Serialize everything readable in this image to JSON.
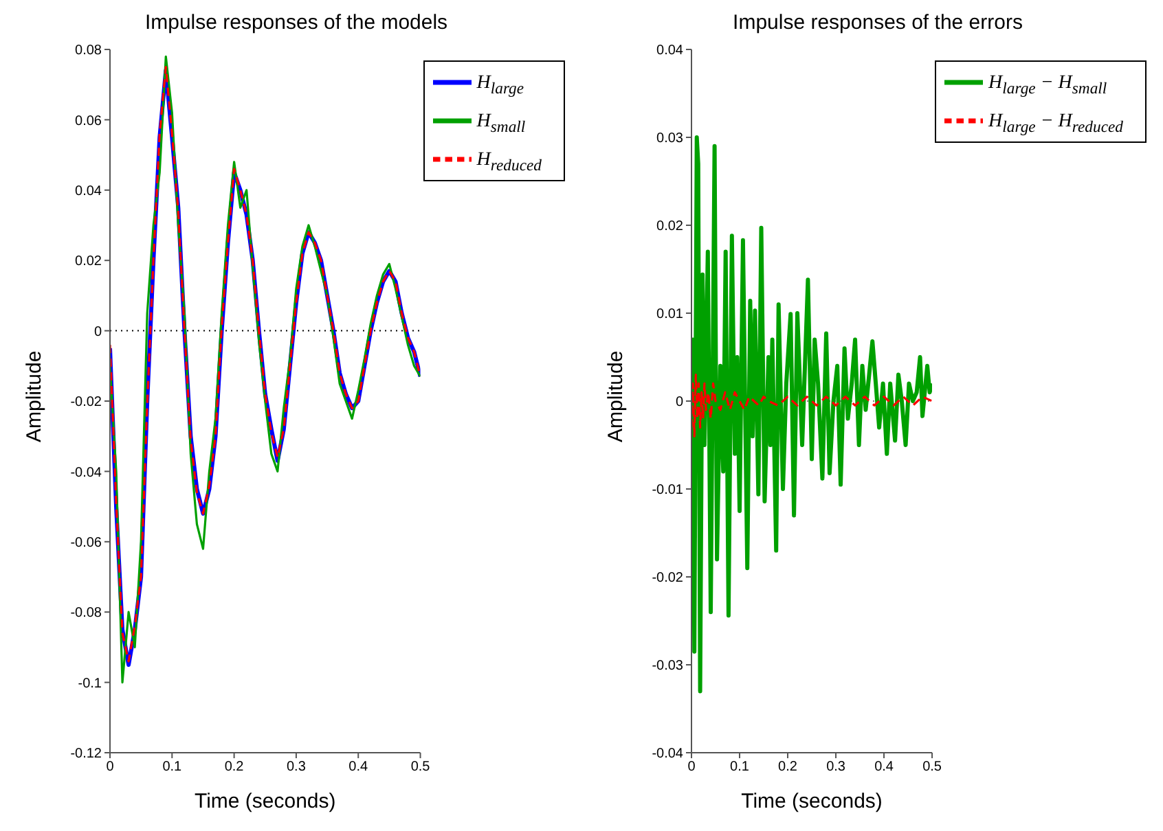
{
  "chart_data": [
    {
      "type": "line",
      "title": "Impulse responses of the models",
      "xlabel": "Time (seconds)",
      "ylabel": "Amplitude",
      "x": [
        0,
        0.01,
        0.02,
        0.03,
        0.04,
        0.05,
        0.06,
        0.07,
        0.08,
        0.09,
        0.1,
        0.11,
        0.12,
        0.13,
        0.14,
        0.15,
        0.16,
        0.17,
        0.18,
        0.19,
        0.2,
        0.21,
        0.22,
        0.23,
        0.24,
        0.25,
        0.26,
        0.27,
        0.28,
        0.29,
        0.3,
        0.31,
        0.32,
        0.33,
        0.34,
        0.35,
        0.36,
        0.37,
        0.38,
        0.39,
        0.4,
        0.41,
        0.42,
        0.43,
        0.44,
        0.45,
        0.46,
        0.47,
        0.48,
        0.49,
        0.5
      ],
      "series": [
        {
          "name": "H$_{large}$",
          "color": "#0000ff",
          "line_style": "solid",
          "values": [
            -0.005,
            -0.05,
            -0.085,
            -0.095,
            -0.085,
            -0.07,
            -0.02,
            0.02,
            0.055,
            0.074,
            0.055,
            0.035,
            0,
            -0.03,
            -0.045,
            -0.052,
            -0.045,
            -0.03,
            0,
            0.025,
            0.045,
            0.04,
            0.033,
            0.02,
            0,
            -0.018,
            -0.028,
            -0.037,
            -0.028,
            -0.01,
            0.008,
            0.022,
            0.028,
            0.025,
            0.02,
            0.01,
            0,
            -0.012,
            -0.018,
            -0.022,
            -0.02,
            -0.01,
            0,
            0.008,
            0.014,
            0.017,
            0.014,
            0.005,
            -0.002,
            -0.006,
            -0.013
          ]
        },
        {
          "name": "H$_{small}$",
          "color": "#00a000",
          "line_style": "solid",
          "values": [
            -0.01,
            -0.04,
            -0.1,
            -0.08,
            -0.09,
            -0.06,
            0.005,
            0.03,
            0.045,
            0.078,
            0.062,
            0.03,
            0.005,
            -0.035,
            -0.055,
            -0.062,
            -0.04,
            -0.025,
            0.005,
            0.03,
            0.048,
            0.035,
            0.04,
            0.018,
            -0.003,
            -0.02,
            -0.035,
            -0.04,
            -0.022,
            -0.008,
            0.012,
            0.024,
            0.03,
            0.024,
            0.017,
            0.01,
            -0.002,
            -0.015,
            -0.02,
            -0.025,
            -0.017,
            -0.008,
            0.002,
            0.01,
            0.016,
            0.019,
            0.012,
            0.004,
            -0.004,
            -0.01,
            -0.013
          ]
        },
        {
          "name": "H$_{reduced}$",
          "color": "#ff0000",
          "line_style": "dashed",
          "values": [
            -0.004,
            -0.049,
            -0.086,
            -0.094,
            -0.084,
            -0.07,
            -0.021,
            0.02,
            0.056,
            0.075,
            0.056,
            0.034,
            0,
            -0.031,
            -0.046,
            -0.052,
            -0.044,
            -0.03,
            0.001,
            0.025,
            0.046,
            0.04,
            0.033,
            0.02,
            0,
            -0.018,
            -0.029,
            -0.036,
            -0.028,
            -0.01,
            0.008,
            0.022,
            0.028,
            0.025,
            0.02,
            0.01,
            0,
            -0.012,
            -0.018,
            -0.022,
            -0.02,
            -0.01,
            0,
            0.008,
            0.014,
            0.017,
            0.014,
            0.005,
            -0.002,
            -0.006,
            -0.013
          ]
        }
      ],
      "xlim": [
        0,
        0.5
      ],
      "xticks": [
        0,
        0.1,
        0.2,
        0.3,
        0.4,
        0.5
      ],
      "ylim": [
        -0.12,
        0.08
      ],
      "yticks": [
        -0.12,
        -0.1,
        -0.08,
        -0.06,
        -0.04,
        -0.02,
        0,
        0.02,
        0.04,
        0.06,
        0.08
      ],
      "ref_lines": [
        {
          "axis": "y",
          "value": 0,
          "color": "#000000",
          "line_style": "dotted"
        }
      ],
      "legend": "top right",
      "marker": "none",
      "grid": false
    },
    {
      "type": "line",
      "title": "Impulse responses of the errors",
      "xlabel": "Time (seconds)",
      "ylabel": "Amplitude",
      "series": [
        {
          "name": "H$_{large}$ − H$_{small}$",
          "color": "#00a000",
          "line_style": "solid",
          "x": [
            0,
            0.003,
            0.006,
            0.011,
            0.014,
            0.018,
            0.023,
            0.027,
            0.034,
            0.04,
            0.048,
            0.053,
            0.06,
            0.066,
            0.071,
            0.077,
            0.084,
            0.09,
            0.095,
            0.1,
            0.107,
            0.116,
            0.122,
            0.127,
            0.132,
            0.139,
            0.145,
            0.152,
            0.16,
            0.164,
            0.168,
            0.176,
            0.181,
            0.19,
            0.197,
            0.206,
            0.213,
            0.22,
            0.23,
            0.242,
            0.25,
            0.256,
            0.263,
            0.272,
            0.28,
            0.287,
            0.295,
            0.303,
            0.31,
            0.318,
            0.325,
            0.333,
            0.34,
            0.348,
            0.355,
            0.362,
            0.376,
            0.383,
            0.39,
            0.398,
            0.406,
            0.413,
            0.423,
            0.43,
            0.437,
            0.445,
            0.452,
            0.46,
            0.468,
            0.475,
            0.48,
            0.49,
            0.495,
            0.5
          ],
          "values": [
            0,
            0.007,
            -0.0285,
            0.03,
            0.027,
            -0.033,
            0.0144,
            -0.005,
            0.017,
            -0.024,
            0.029,
            -0.018,
            0.004,
            -0.008,
            0.017,
            -0.0244,
            0.0188,
            -0.006,
            0.005,
            -0.0125,
            0.0183,
            -0.019,
            0.0114,
            -0.004,
            0.0103,
            -0.0106,
            0.0197,
            -0.0114,
            0.005,
            -0.005,
            0.007,
            -0.017,
            0.011,
            -0.01,
            0.002,
            0.0099,
            -0.013,
            0.01,
            -0.005,
            0.0138,
            -0.0066,
            0.007,
            0.002,
            -0.0088,
            0.0077,
            -0.0082,
            0,
            0.004,
            -0.0095,
            0.006,
            -0.002,
            0.002,
            0.007,
            -0.005,
            0.004,
            -0.001,
            0.0068,
            0.002,
            -0.003,
            0.002,
            -0.006,
            0.002,
            -0.0045,
            0.003,
            0,
            -0.005,
            0.002,
            0,
            0.001,
            0.005,
            -0.0017,
            0.004,
            0.001,
            0.002
          ]
        },
        {
          "name": "H$_{large}$ − H$_{reduced}$",
          "color": "#ff0000",
          "line_style": "dashed",
          "x": [
            0,
            0.003,
            0.006,
            0.009,
            0.012,
            0.015,
            0.018,
            0.021,
            0.024,
            0.027,
            0.03,
            0.035,
            0.04,
            0.045,
            0.05,
            0.06,
            0.07,
            0.08,
            0.09,
            0.1,
            0.11,
            0.12,
            0.13,
            0.14,
            0.15,
            0.16,
            0.18,
            0.2,
            0.22,
            0.24,
            0.26,
            0.28,
            0.3,
            0.32,
            0.34,
            0.36,
            0.38,
            0.4,
            0.42,
            0.44,
            0.46,
            0.48,
            0.5
          ],
          "values": [
            -0.003,
            0.002,
            -0.004,
            0.003,
            -0.002,
            0.002,
            -0.003,
            0.001,
            -0.002,
            0.002,
            -0.001,
            0.001,
            -0.002,
            0.002,
            0,
            -0.001,
            0.001,
            -0.001,
            0.001,
            0,
            -0.001,
            0.0005,
            0,
            -0.0005,
            0.0005,
            0,
            -0.0005,
            0.0005,
            -0.0005,
            0.0005,
            -0.0005,
            0.0005,
            -0.0005,
            0.0005,
            -0.0005,
            0.0005,
            -0.0005,
            0.0005,
            -0.0005,
            0.0005,
            -0.0005,
            0.0005,
            0
          ]
        }
      ],
      "xlim": [
        0,
        0.5
      ],
      "xticks": [
        0,
        0.1,
        0.2,
        0.3,
        0.4,
        0.5
      ],
      "ylim": [
        -0.04,
        0.04
      ],
      "yticks": [
        -0.04,
        -0.03,
        -0.02,
        -0.01,
        0,
        0.01,
        0.02,
        0.03,
        0.04
      ],
      "ref_lines": [
        {
          "axis": "y",
          "value": 0,
          "color": "#808080",
          "line_style": "dotted"
        }
      ],
      "legend": "top right",
      "marker": "none",
      "grid": false
    }
  ]
}
